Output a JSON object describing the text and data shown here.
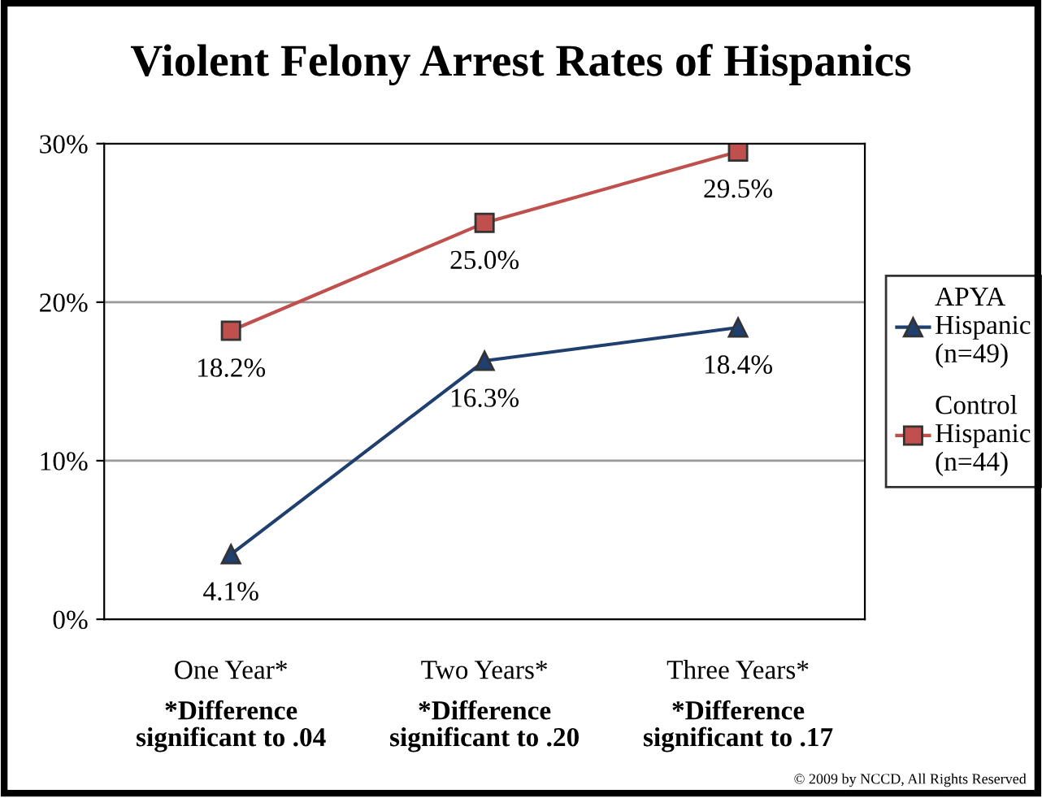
{
  "chart_data": {
    "type": "line",
    "title": "Violent Felony Arrest Rates of Hispanics",
    "categories": [
      "One Year*",
      "Two Years*",
      "Three Years*"
    ],
    "series": [
      {
        "name": "APYA Hispanic (n=49)",
        "color": "#1f3f6e",
        "values": [
          4.1,
          16.3,
          18.4
        ],
        "marker": "triangle",
        "value_labels": [
          "4.1%",
          "16.3%",
          "18.4%"
        ]
      },
      {
        "name": "Control Hispanic (n=44)",
        "color": "#c0504d",
        "values": [
          18.2,
          25.0,
          29.5
        ],
        "marker": "square",
        "value_labels": [
          "18.2%",
          "25.0%",
          "29.5%"
        ]
      }
    ],
    "ylim": [
      0,
      30
    ],
    "yticks": [
      {
        "value": 0,
        "label": "0%"
      },
      {
        "value": 10,
        "label": "10%"
      },
      {
        "value": 20,
        "label": "20%"
      },
      {
        "value": 30,
        "label": "30%"
      }
    ],
    "grid": "y",
    "legend": "right",
    "line_style": "solid",
    "annotations": [
      "*Difference significant to .04",
      "*Difference significant to .20",
      "*Difference significant to .17",
      "© 2009 by NCCD, All Rights Reserved"
    ]
  }
}
